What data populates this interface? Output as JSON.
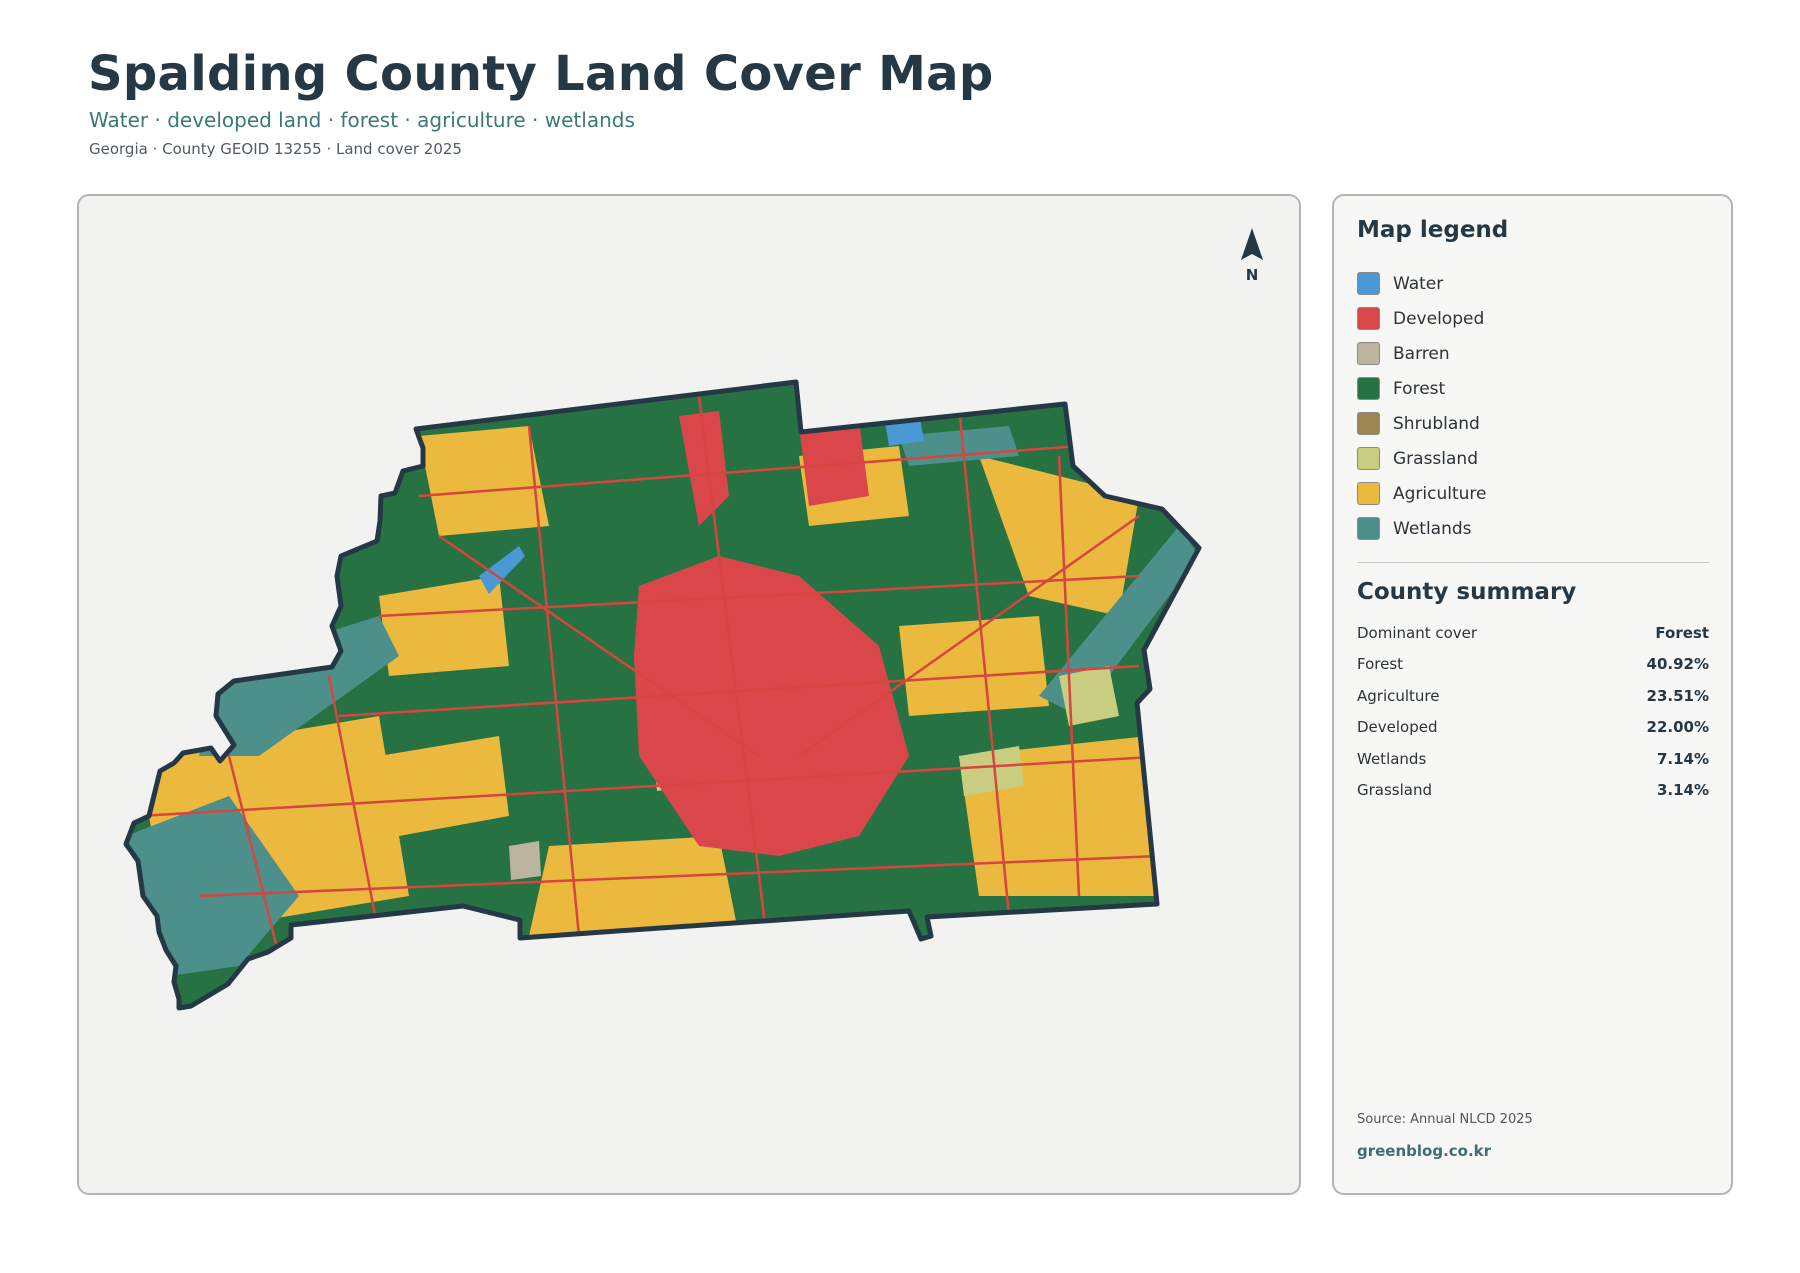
{
  "header": {
    "title": "Spalding County Land Cover Map",
    "subtitle": "Water · developed land · forest · agriculture · wetlands",
    "meta": "Georgia · County GEOID 13255 · Land cover 2025"
  },
  "map": {
    "north_label": "N",
    "boundary_color": "#253845",
    "road_color": "#d6453f",
    "background_color": "#f2f2f1"
  },
  "legend": {
    "title": "Map legend",
    "items": [
      {
        "label": "Water",
        "color": "#4b98d6"
      },
      {
        "label": "Developed",
        "color": "#d9474a"
      },
      {
        "label": "Barren",
        "color": "#bdb4a0"
      },
      {
        "label": "Forest",
        "color": "#277242"
      },
      {
        "label": "Shrubland",
        "color": "#9c8652"
      },
      {
        "label": "Grassland",
        "color": "#c8cd7f"
      },
      {
        "label": "Agriculture",
        "color": "#ecb93f"
      },
      {
        "label": "Wetlands",
        "color": "#4d8f8a"
      }
    ]
  },
  "summary": {
    "title": "County summary",
    "rows": [
      {
        "key": "Dominant cover",
        "value": "Forest"
      },
      {
        "key": "Forest",
        "value": "40.92%"
      },
      {
        "key": "Agriculture",
        "value": "23.51%"
      },
      {
        "key": "Developed",
        "value": "22.00%"
      },
      {
        "key": "Wetlands",
        "value": "7.14%"
      },
      {
        "key": "Grassland",
        "value": "3.14%"
      }
    ]
  },
  "footer": {
    "source": "Source: Annual NLCD 2025",
    "site": "greenblog.co.kr"
  }
}
